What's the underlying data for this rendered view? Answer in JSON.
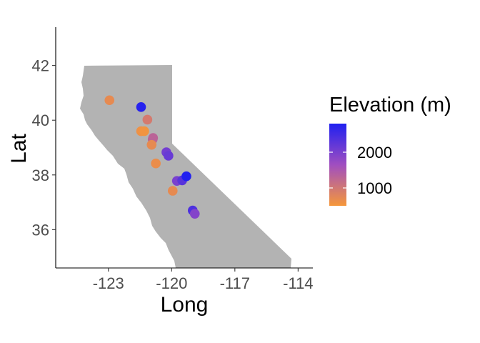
{
  "chart_data": {
    "type": "scatter",
    "title": "",
    "xlabel": "Long",
    "ylabel": "Lat",
    "xlim": [
      -125.5,
      -113.3
    ],
    "ylim": [
      34.6,
      43.4
    ],
    "x_ticks": [
      -123,
      -120,
      -117,
      -114
    ],
    "x_tick_labels": [
      "-123",
      "-120",
      "-117",
      "-114"
    ],
    "y_ticks": [
      36,
      38,
      40,
      42
    ],
    "y_tick_labels": [
      "36",
      "38",
      "40",
      "42"
    ],
    "grid": false,
    "legend": {
      "title": "Elevation (m)",
      "placement": "right",
      "range": [
        500,
        2800
      ],
      "labels": [
        "2000",
        "1000"
      ],
      "label_values": [
        2000,
        1000
      ],
      "color_low": "#f5973a",
      "color_mid": "#a04ec0",
      "color_high": "#2020f0"
    },
    "points": [
      {
        "long": -122.95,
        "lat": 40.73,
        "elevation": 700
      },
      {
        "long": -121.45,
        "lat": 40.48,
        "elevation": 2750
      },
      {
        "long": -121.15,
        "lat": 40.02,
        "elevation": 950
      },
      {
        "long": -121.45,
        "lat": 39.6,
        "elevation": 600
      },
      {
        "long": -121.3,
        "lat": 39.6,
        "elevation": 550
      },
      {
        "long": -120.9,
        "lat": 39.3,
        "elevation": 1250
      },
      {
        "long": -120.88,
        "lat": 39.35,
        "elevation": 1300
      },
      {
        "long": -120.95,
        "lat": 39.1,
        "elevation": 700
      },
      {
        "long": -120.25,
        "lat": 38.83,
        "elevation": 2050
      },
      {
        "long": -120.15,
        "lat": 38.7,
        "elevation": 2150
      },
      {
        "long": -120.75,
        "lat": 38.42,
        "elevation": 650
      },
      {
        "long": -119.95,
        "lat": 37.42,
        "elevation": 700
      },
      {
        "long": -119.75,
        "lat": 37.78,
        "elevation": 2000
      },
      {
        "long": -119.5,
        "lat": 37.8,
        "elevation": 2300
      },
      {
        "long": -119.3,
        "lat": 37.95,
        "elevation": 2800
      },
      {
        "long": -119.0,
        "lat": 36.7,
        "elevation": 2400
      },
      {
        "long": -118.9,
        "lat": 36.58,
        "elevation": 1900
      }
    ]
  }
}
